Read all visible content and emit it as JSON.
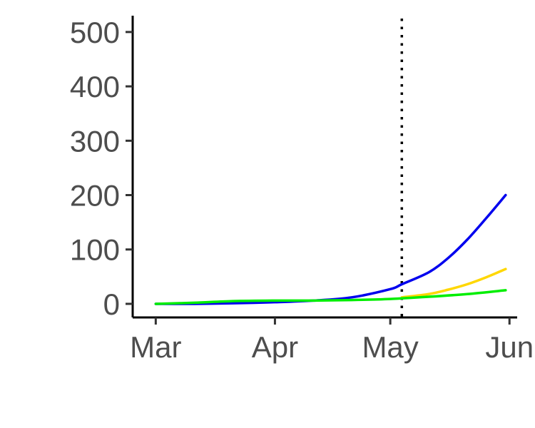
{
  "chart_data": {
    "type": "line",
    "title": "",
    "xlabel": "",
    "ylabel": "",
    "x_axis": {
      "type": "date",
      "range": [
        "2020-02-24",
        "2020-06-03"
      ],
      "ticks": [
        {
          "date": "2020-03-01",
          "label": "Mar"
        },
        {
          "date": "2020-04-01",
          "label": "Apr"
        },
        {
          "date": "2020-05-01",
          "label": "May"
        },
        {
          "date": "2020-06-01",
          "label": "Jun"
        }
      ]
    },
    "y_axis": {
      "range": [
        -25,
        530
      ],
      "ticks": [
        0,
        100,
        200,
        300,
        400,
        500
      ]
    },
    "grid": false,
    "legend": "none",
    "reference_line": {
      "orientation": "vertical",
      "date": "2020-05-04",
      "style": "dotted",
      "color": "#000000"
    },
    "series": [
      {
        "color": "#0000ee",
        "points": [
          [
            "2020-03-01",
            0
          ],
          [
            "2020-03-11",
            0
          ],
          [
            "2020-03-21",
            1
          ],
          [
            "2020-04-01",
            3
          ],
          [
            "2020-04-11",
            6
          ],
          [
            "2020-04-21",
            12
          ],
          [
            "2020-05-01",
            27
          ],
          [
            "2020-05-04",
            36
          ],
          [
            "2020-05-11",
            58
          ],
          [
            "2020-05-16",
            84
          ],
          [
            "2020-05-21",
            118
          ],
          [
            "2020-05-26",
            158
          ],
          [
            "2020-05-31",
            200
          ]
        ]
      },
      {
        "color": "#ffd700",
        "points": [
          [
            "2020-05-04",
            12
          ],
          [
            "2020-05-11",
            18
          ],
          [
            "2020-05-16",
            26
          ],
          [
            "2020-05-21",
            36
          ],
          [
            "2020-05-26",
            49
          ],
          [
            "2020-05-31",
            64
          ]
        ]
      },
      {
        "color": "#00ee00",
        "points": [
          [
            "2020-03-01",
            0
          ],
          [
            "2020-03-11",
            2
          ],
          [
            "2020-03-21",
            5
          ],
          [
            "2020-04-01",
            6
          ],
          [
            "2020-04-11",
            6
          ],
          [
            "2020-04-21",
            7
          ],
          [
            "2020-05-01",
            9
          ],
          [
            "2020-05-11",
            13
          ],
          [
            "2020-05-21",
            18
          ],
          [
            "2020-05-31",
            25
          ]
        ]
      }
    ]
  }
}
